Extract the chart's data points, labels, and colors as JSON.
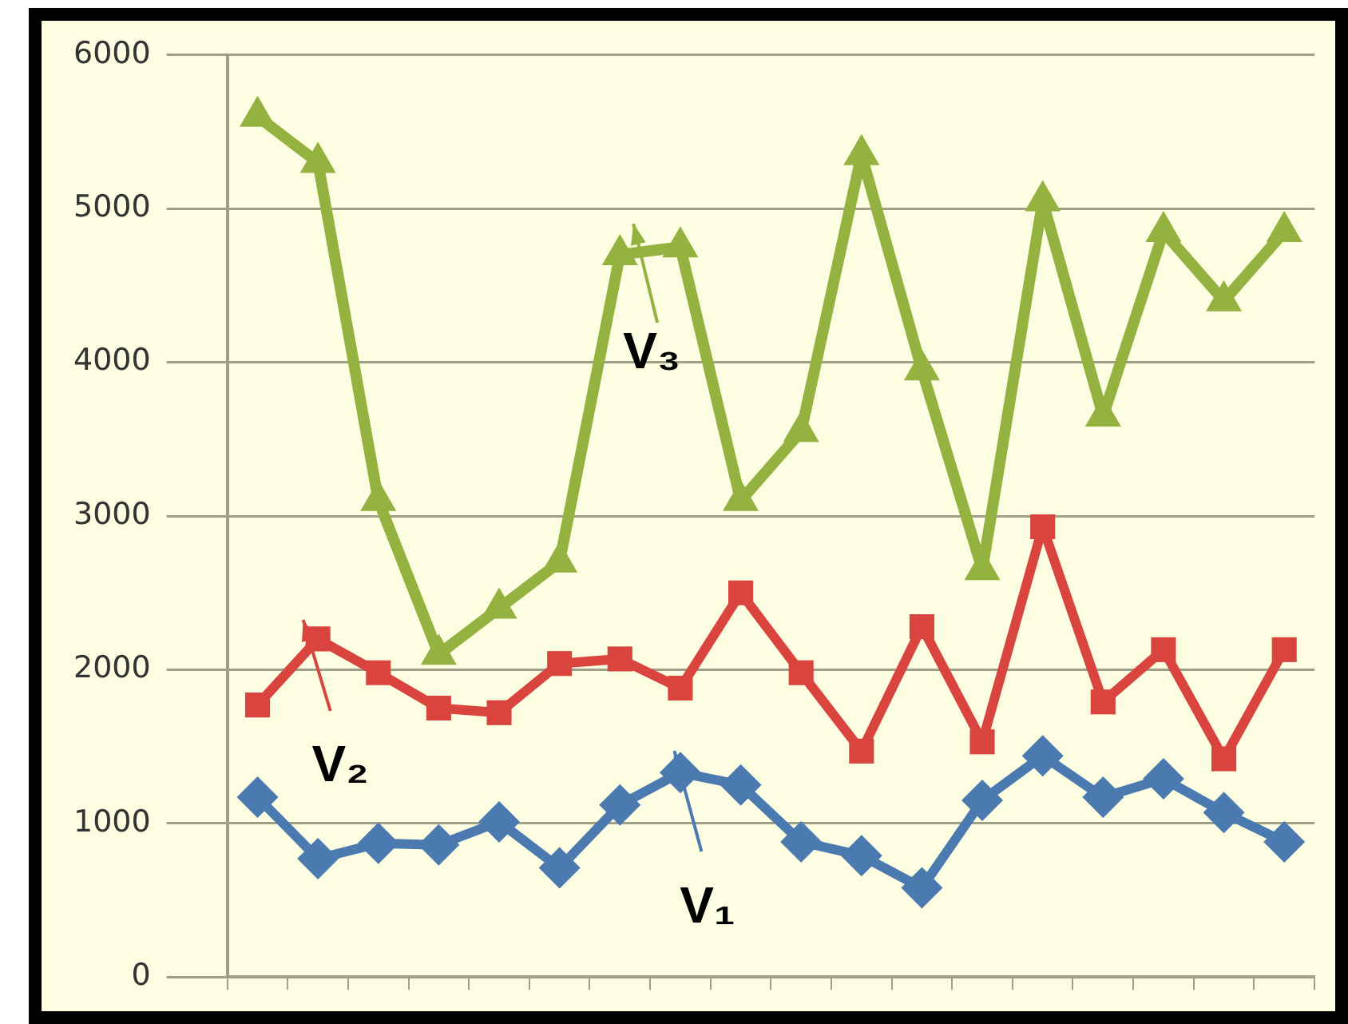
{
  "chart_data": {
    "type": "line",
    "categories": [
      null,
      null,
      null,
      null,
      null,
      null,
      null,
      null,
      null,
      null,
      null,
      null,
      null,
      null,
      null,
      null,
      null,
      null
    ],
    "series": [
      {
        "name": "V₃",
        "color": "#94b23f",
        "marker": "triangle",
        "values": [
          5600,
          5300,
          3100,
          2100,
          2400,
          2700,
          4700,
          4750,
          3100,
          3550,
          5350,
          3950,
          2650,
          5050,
          3650,
          4850,
          4400,
          4850
        ]
      },
      {
        "name": "V₂",
        "color": "#d9443f",
        "marker": "square",
        "values": [
          1770,
          2200,
          1980,
          1750,
          1720,
          2040,
          2070,
          1880,
          2500,
          1980,
          1470,
          2280,
          1530,
          2930,
          1790,
          2130,
          1420,
          2130
        ]
      },
      {
        "name": "V₁",
        "color": "#4a7ab0",
        "marker": "diamond",
        "values": [
          1170,
          770,
          870,
          860,
          1010,
          710,
          1120,
          1330,
          1250,
          880,
          790,
          580,
          1150,
          1440,
          1170,
          1290,
          1070,
          880
        ]
      }
    ],
    "ylim": [
      0,
      6000
    ],
    "yticks": [
      0,
      1000,
      2000,
      3000,
      4000,
      5000,
      6000
    ],
    "grid": "y",
    "legend": "center",
    "tick_labels": "y",
    "line_style": "solid"
  }
}
